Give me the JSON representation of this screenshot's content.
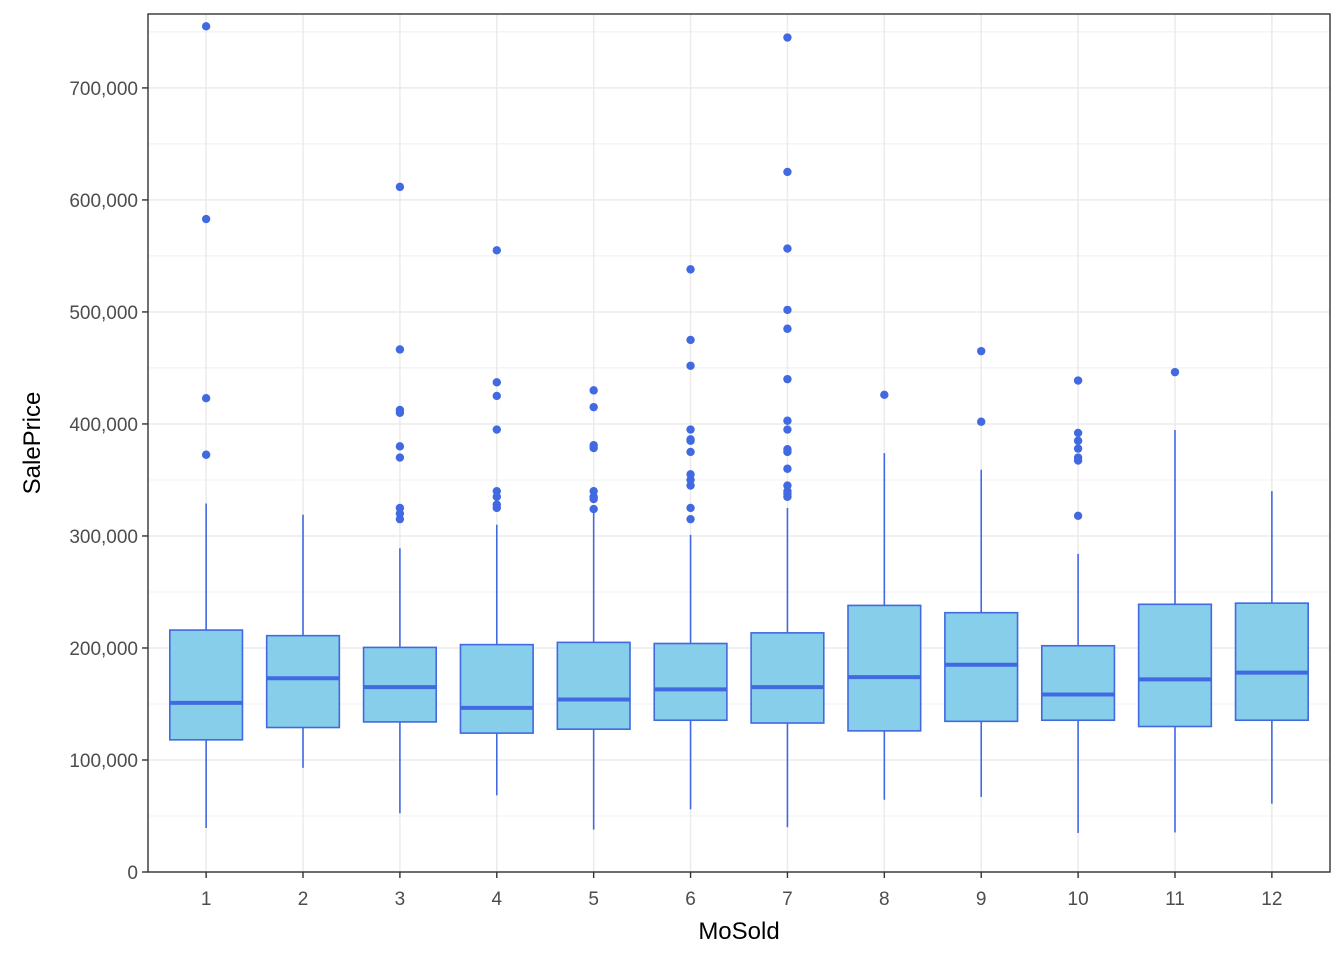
{
  "chart_data": {
    "type": "boxplot",
    "xlabel": "MoSold",
    "ylabel": "SalePrice",
    "ylim": [
      0,
      766000
    ],
    "y_ticks": [
      0,
      100000,
      200000,
      300000,
      400000,
      500000,
      600000,
      700000
    ],
    "y_tick_labels": [
      "0",
      "100,000",
      "200,000",
      "300,000",
      "400,000",
      "500,000",
      "600,000",
      "700,000"
    ],
    "categories": [
      "1",
      "2",
      "3",
      "4",
      "5",
      "6",
      "7",
      "8",
      "9",
      "10",
      "11",
      "12"
    ],
    "colors": {
      "fill": "#87ceeb",
      "stroke": "#4169e1",
      "grid": "#ebebeb",
      "border": "#333333"
    },
    "boxes": [
      {
        "category": "1",
        "whisker_low": 39300,
        "q1": 118000,
        "median": 151000,
        "q3": 216000,
        "whisker_high": 329000,
        "outliers": [
          755000,
          582933,
          423000,
          372500
        ]
      },
      {
        "category": "2",
        "whisker_low": 93000,
        "q1": 129000,
        "median": 173000,
        "q3": 211000,
        "whisker_high": 319000,
        "outliers": []
      },
      {
        "category": "3",
        "whisker_low": 52500,
        "q1": 134000,
        "median": 165000,
        "q3": 200500,
        "whisker_high": 289000,
        "outliers": [
          611657,
          466500,
          412500,
          410000,
          380000,
          370000,
          325000,
          320000,
          315000
        ]
      },
      {
        "category": "4",
        "whisker_low": 68500,
        "q1": 124000,
        "median": 146500,
        "q3": 203000,
        "whisker_high": 310000,
        "outliers": [
          555000,
          437154,
          425000,
          395000,
          340000,
          335000,
          328000,
          325000
        ]
      },
      {
        "category": "5",
        "whisker_low": 37900,
        "q1": 127500,
        "median": 154000,
        "q3": 205000,
        "whisker_high": 323000,
        "outliers": [
          430000,
          415000,
          381000,
          378500,
          340000,
          335000,
          333000,
          324000
        ]
      },
      {
        "category": "6",
        "whisker_low": 55993,
        "q1": 135500,
        "median": 163000,
        "q3": 204000,
        "whisker_high": 301000,
        "outliers": [
          538000,
          475000,
          451950,
          395000,
          386250,
          385000,
          375000,
          355000,
          350000,
          345000,
          325000,
          315000
        ]
      },
      {
        "category": "7",
        "whisker_low": 40000,
        "q1": 133000,
        "median": 165000,
        "q3": 213500,
        "whisker_high": 325000,
        "outliers": [
          745000,
          625000,
          556581,
          501837,
          485000,
          440000,
          402861,
          395000,
          377500,
          375000,
          360000,
          345000,
          340000,
          337500,
          335000
        ]
      },
      {
        "category": "8",
        "whisker_low": 64500,
        "q1": 126000,
        "median": 174000,
        "q3": 238000,
        "whisker_high": 374000,
        "outliers": [
          426000
        ]
      },
      {
        "category": "9",
        "whisker_low": 67000,
        "q1": 134500,
        "median": 185000,
        "q3": 231500,
        "whisker_high": 359100,
        "outliers": [
          465000,
          402000
        ]
      },
      {
        "category": "10",
        "whisker_low": 34900,
        "q1": 135500,
        "median": 158500,
        "q3": 202000,
        "whisker_high": 284000,
        "outliers": [
          438780,
          392000,
          385000,
          378000,
          370000,
          367294,
          318000
        ]
      },
      {
        "category": "11",
        "whisker_low": 35311,
        "q1": 129900,
        "median": 172000,
        "q3": 239000,
        "whisker_high": 394617,
        "outliers": [
          446261
        ]
      },
      {
        "category": "12",
        "whisker_low": 61000,
        "q1": 135500,
        "median": 178000,
        "q3": 240000,
        "whisker_high": 340000,
        "outliers": []
      }
    ]
  }
}
